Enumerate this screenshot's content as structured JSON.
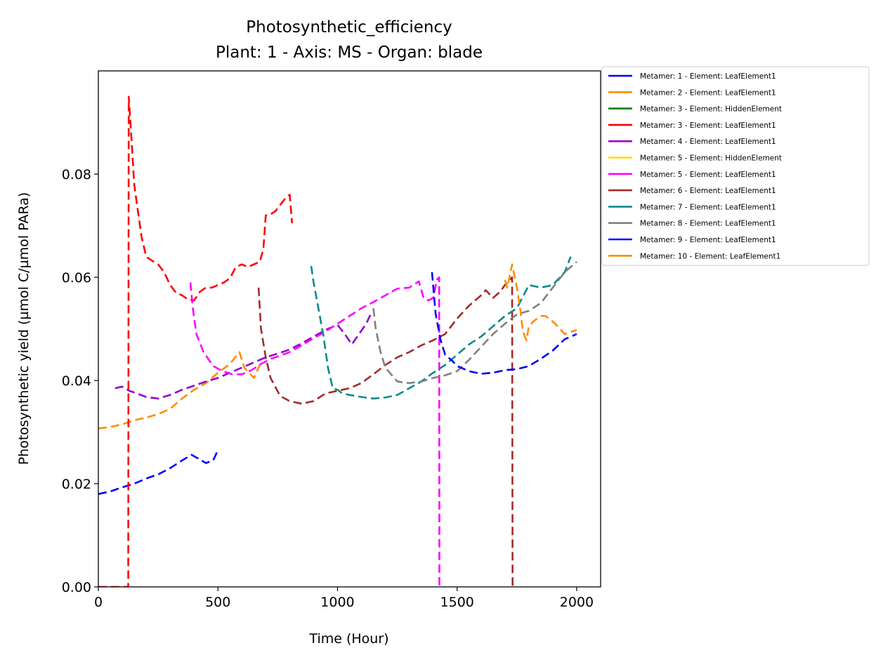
{
  "chart_data": {
    "type": "line",
    "title": "Photosynthetic_efficiency",
    "subtitle": "Plant: 1 - Axis: MS - Organ: blade",
    "xlabel": "Time (Hour)",
    "ylabel": "Photosynthetic yield (µmol C/µmol PARa)",
    "xlim": [
      0,
      2100
    ],
    "ylim": [
      0,
      0.1
    ],
    "xticks": [
      0,
      500,
      1000,
      1500,
      2000
    ],
    "yticks": [
      0.0,
      0.02,
      0.04,
      0.06,
      0.08
    ],
    "xtick_labels": [
      "0",
      "500",
      "1000",
      "1500",
      "2000"
    ],
    "ytick_labels": [
      "0.00",
      "0.02",
      "0.04",
      "0.06",
      "0.08"
    ],
    "grid": false,
    "legend_position": "outside-top-right",
    "series": [
      {
        "name": "Metamer: 1 - Element: LeafElement1",
        "color": "#0000ff",
        "dash": "dashed",
        "x": [
          0,
          50,
          100,
          150,
          200,
          250,
          300,
          350,
          390,
          420,
          450,
          480,
          500
        ],
        "y": [
          0.018,
          0.0185,
          0.0193,
          0.02,
          0.021,
          0.0218,
          0.023,
          0.0245,
          0.0256,
          0.0248,
          0.024,
          0.0245,
          0.0265
        ]
      },
      {
        "name": "Metamer: 2 - Element: LeafElement1",
        "color": "#ff8c00",
        "dash": "dashed",
        "x": [
          0,
          50,
          100,
          150,
          200,
          250,
          300,
          350,
          400,
          450,
          500,
          550,
          590,
          610,
          650,
          680
        ],
        "y": [
          0.0307,
          0.031,
          0.0315,
          0.0323,
          0.0328,
          0.0335,
          0.0345,
          0.0365,
          0.0382,
          0.0395,
          0.0415,
          0.0432,
          0.0455,
          0.0425,
          0.0405,
          0.0435
        ]
      },
      {
        "name": "Metamer: 3 - Element: HiddenElement",
        "color": "#008000",
        "dash": "solid",
        "x": [],
        "y": []
      },
      {
        "name": "Metamer: 3 - Element: LeafElement1",
        "color": "#ff0000",
        "dash": "dashed",
        "x": [
          0,
          125,
          127,
          130,
          145,
          150,
          165,
          180,
          200,
          225,
          250,
          275,
          300,
          325,
          350,
          375,
          400,
          425,
          450,
          475,
          500,
          525,
          550,
          575,
          600,
          625,
          650,
          675,
          690,
          700,
          720,
          740,
          760,
          780,
          800,
          810
        ],
        "y": [
          0.0,
          0.0,
          0.095,
          0.093,
          0.082,
          0.078,
          0.073,
          0.068,
          0.064,
          0.0632,
          0.0625,
          0.061,
          0.0585,
          0.057,
          0.0565,
          0.0557,
          0.0555,
          0.0572,
          0.058,
          0.058,
          0.0585,
          0.059,
          0.0598,
          0.062,
          0.0625,
          0.062,
          0.0625,
          0.063,
          0.0655,
          0.072,
          0.0722,
          0.0728,
          0.074,
          0.0752,
          0.076,
          0.0705
        ]
      },
      {
        "name": "Metamer: 4 - Element: LeafElement1",
        "color": "#9400d3",
        "dash": "dashed",
        "x": [
          70,
          100,
          130,
          160,
          200,
          250,
          300,
          350,
          400,
          450,
          500,
          550,
          600,
          650,
          700,
          750,
          800,
          850,
          900,
          950,
          1000,
          1030,
          1060,
          1090,
          1120,
          1140
        ],
        "y": [
          0.0385,
          0.0388,
          0.038,
          0.0375,
          0.0368,
          0.0365,
          0.0372,
          0.0382,
          0.039,
          0.0398,
          0.0405,
          0.0415,
          0.0425,
          0.0435,
          0.0445,
          0.0452,
          0.046,
          0.0472,
          0.0485,
          0.0498,
          0.0508,
          0.049,
          0.047,
          0.049,
          0.051,
          0.053
        ]
      },
      {
        "name": "Metamer: 5 - Element: HiddenElement",
        "color": "#ffd700",
        "dash": "solid",
        "x": [],
        "y": []
      },
      {
        "name": "Metamer: 5 - Element: LeafElement1",
        "color": "#ff00ff",
        "dash": "dashed",
        "x": [
          385,
          395,
          410,
          440,
          480,
          520,
          560,
          600,
          640,
          680,
          720,
          760,
          800,
          850,
          900,
          950,
          1000,
          1050,
          1100,
          1150,
          1200,
          1250,
          1300,
          1340,
          1360,
          1380,
          1400,
          1415,
          1425,
          1426
        ],
        "y": [
          0.059,
          0.054,
          0.049,
          0.0455,
          0.0428,
          0.0418,
          0.0412,
          0.0412,
          0.042,
          0.0432,
          0.0442,
          0.0448,
          0.0455,
          0.0468,
          0.0482,
          0.0495,
          0.051,
          0.0525,
          0.054,
          0.0552,
          0.0565,
          0.0578,
          0.058,
          0.0592,
          0.056,
          0.0555,
          0.056,
          0.0595,
          0.06,
          0.0
        ]
      },
      {
        "name": "Metamer: 6 - Element: LeafElement1",
        "color": "#a52a2a",
        "dash": "dashed",
        "x": [
          670,
          680,
          700,
          720,
          760,
          800,
          850,
          900,
          950,
          1000,
          1050,
          1100,
          1150,
          1200,
          1250,
          1300,
          1350,
          1400,
          1450,
          1500,
          1550,
          1600,
          1620,
          1650,
          1680,
          1700,
          1720,
          1730,
          1732
        ],
        "y": [
          0.058,
          0.05,
          0.0445,
          0.0405,
          0.037,
          0.036,
          0.0355,
          0.036,
          0.0375,
          0.038,
          0.0385,
          0.0395,
          0.0412,
          0.043,
          0.0445,
          0.0455,
          0.0468,
          0.0478,
          0.049,
          0.052,
          0.0545,
          0.0565,
          0.0575,
          0.056,
          0.0572,
          0.0585,
          0.0595,
          0.06,
          0.0
        ]
      },
      {
        "name": "Metamer: 7 - Element: LeafElement1",
        "color": "#008b8b",
        "dash": "dashed",
        "x": [
          890,
          900,
          920,
          940,
          960,
          980,
          1000,
          1020,
          1050,
          1100,
          1150,
          1200,
          1250,
          1300,
          1350,
          1400,
          1450,
          1500,
          1550,
          1600,
          1650,
          1700,
          1750,
          1800,
          1850,
          1900,
          1950,
          1975
        ],
        "y": [
          0.0622,
          0.059,
          0.054,
          0.049,
          0.0425,
          0.0385,
          0.0382,
          0.0375,
          0.0372,
          0.0368,
          0.0365,
          0.0367,
          0.0372,
          0.0385,
          0.0398,
          0.0415,
          0.043,
          0.045,
          0.047,
          0.0485,
          0.0505,
          0.0525,
          0.054,
          0.0585,
          0.058,
          0.0585,
          0.061,
          0.064
        ]
      },
      {
        "name": "Metamer: 8 - Element: LeafElement1",
        "color": "#808080",
        "dash": "dashed",
        "x": [
          1150,
          1160,
          1180,
          1200,
          1250,
          1300,
          1350,
          1400,
          1450,
          1500,
          1550,
          1600,
          1650,
          1700,
          1750,
          1800,
          1850,
          1900,
          1950,
          2000
        ],
        "y": [
          0.054,
          0.05,
          0.0455,
          0.0425,
          0.0398,
          0.0395,
          0.0398,
          0.0405,
          0.041,
          0.0418,
          0.044,
          0.0465,
          0.049,
          0.051,
          0.0528,
          0.0535,
          0.055,
          0.058,
          0.061,
          0.063
        ]
      },
      {
        "name": "Metamer: 9 - Element: LeafElement1",
        "color": "#0000ff",
        "dash": "dashed",
        "x": [
          1395,
          1410,
          1430,
          1450,
          1480,
          1500,
          1550,
          1600,
          1650,
          1700,
          1750,
          1800,
          1850,
          1900,
          1950,
          2000
        ],
        "y": [
          0.061,
          0.053,
          0.048,
          0.045,
          0.0438,
          0.0428,
          0.0418,
          0.0413,
          0.0415,
          0.042,
          0.0422,
          0.0428,
          0.0442,
          0.0458,
          0.048,
          0.049
        ]
      },
      {
        "name": "Metamer: 10 - Element: LeafElement1",
        "color": "#ff8c00",
        "dash": "dashed",
        "x": [
          1700,
          1710,
          1730,
          1750,
          1765,
          1775,
          1790,
          1800,
          1820,
          1850,
          1870,
          1890,
          1910,
          1950,
          2000
        ],
        "y": [
          0.0595,
          0.058,
          0.0625,
          0.058,
          0.0535,
          0.0495,
          0.0478,
          0.0505,
          0.0515,
          0.0525,
          0.0525,
          0.0518,
          0.051,
          0.049,
          0.0498
        ]
      }
    ]
  }
}
